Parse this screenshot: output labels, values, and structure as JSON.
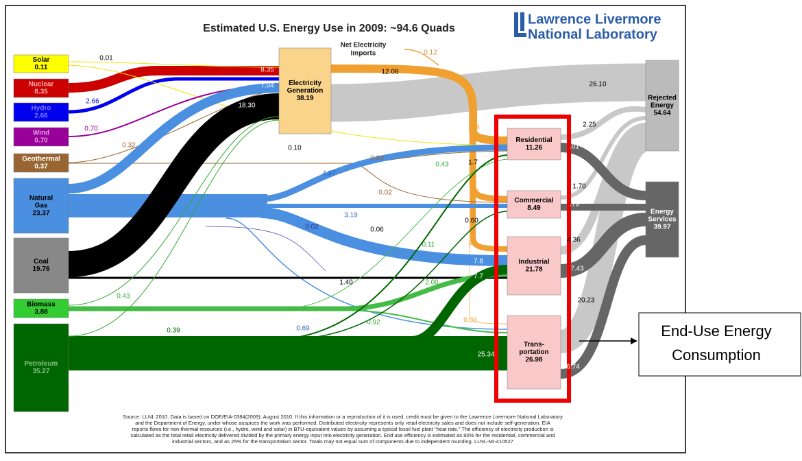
{
  "title": "Estimated U.S. Energy Use in 2009: ~94.6 Quads",
  "logo": [
    "Lawrence Livermore",
    "National Laboratory"
  ],
  "nodes": [
    {
      "label": [
        "Solar"
      ],
      "value": "0.11",
      "color": "#ffff00"
    },
    {
      "label": [
        "Nuclear"
      ],
      "value": "8.35",
      "color": "#cc0000"
    },
    {
      "label": [
        "Hydro"
      ],
      "value": "2.66",
      "color": "#0000ee"
    },
    {
      "label": [
        "Wind"
      ],
      "value": "0.70",
      "color": "#990099"
    },
    {
      "label": [
        "Geothermal"
      ],
      "value": "0.37",
      "color": "#996633"
    },
    {
      "label": [
        "Natural",
        "Gas"
      ],
      "value": "23.37",
      "color": "#4a8fe0"
    },
    {
      "label": [
        "Coal"
      ],
      "value": "19.76",
      "color": "#888888"
    },
    {
      "label": [
        "Biomass"
      ],
      "value": "3.88",
      "color": "#33cc33"
    },
    {
      "label": [
        "Petroleum"
      ],
      "value": "35.27",
      "color": "#006600"
    },
    {
      "label": [
        "Electricity",
        "Generation"
      ],
      "value": "38.19",
      "color": "#f9d48a"
    },
    {
      "label": [
        "Residential"
      ],
      "value": "11.26",
      "color": "#f9c9c9"
    },
    {
      "label": [
        "Commercial"
      ],
      "value": "8.49",
      "color": "#f9c9c9"
    },
    {
      "label": [
        "Industrial"
      ],
      "value": "21.78",
      "color": "#f9c9c9"
    },
    {
      "label": [
        "Trans-",
        "portation"
      ],
      "value": "26.98",
      "color": "#f9c9c9"
    },
    {
      "label": [
        "Rejected",
        "Energy"
      ],
      "value": "54.64",
      "color": "#bbbbbb"
    },
    {
      "label": [
        "Energy",
        "Services"
      ],
      "value": "39.97",
      "color": "#666666"
    }
  ],
  "imports_label": [
    "Net Electricity",
    "Imports"
  ],
  "flow_labels": [
    "0.01",
    "8.35",
    "7.04",
    "2.66",
    "18.30",
    "0.70",
    "0.32",
    "0.10",
    "0.03",
    "0.43",
    "4.87",
    "0.02",
    "3.19",
    "0.02",
    "0.06",
    "0.11",
    "1.40",
    "2.00",
    "0.43",
    "0.92",
    "0.69",
    "0.39",
    "12.08",
    "0.12",
    "26.10",
    "2.25",
    "1.70",
    "4.36",
    "20.23",
    "25.34",
    "4.4",
    "1.7",
    "4.3",
    "0.60",
    "3.0",
    "7.8",
    "7.7",
    "0.03",
    "7.43",
    "6.74",
    ".79",
    ".01"
  ],
  "source_note": [
    "Source: LLNL 2010. Data is based on DOE/EIA-0384(2009), August 2010. If this information or a reproduction of it is used, credit must be given to the Lawrence Livermore National Laboratory",
    "and the Department of Energy, under whose auspices the work was performed. Distributed electricity represents only retail electricity sales and does not include self-generation. EIA",
    "reports flows for non-thermal resources (i.e., hydro, wind and solar) in BTU-equivalent values by assuming a typical fossil fuel plant \"heat rate.\" The efficiency of electricity production is",
    "calculated as the total retail electricity delivered divided by the primary energy input into electricity generation. End use efficiency is estimated as 80% for the residential, commercial and",
    "industrial sectors, and as 25% for the transportation sector. Totals may not equal sum of components due to independent rounding. LLNL-MI-410527"
  ],
  "callout": [
    "End-Use Energy",
    "Consumption"
  ]
}
